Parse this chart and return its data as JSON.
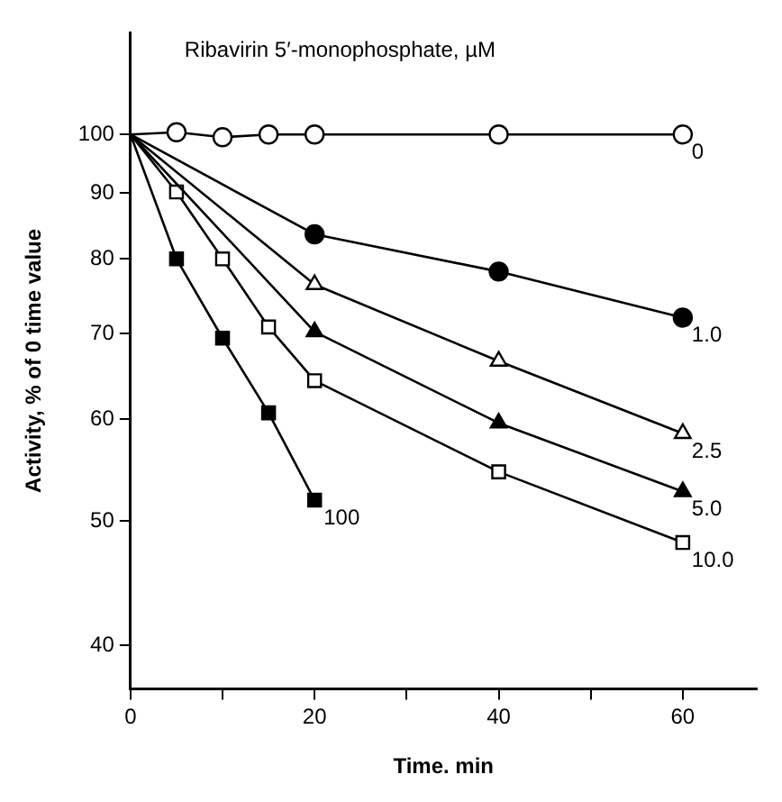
{
  "chart_data": {
    "type": "line",
    "legend_title": "Ribavirin 5′-monophosphate, µM",
    "xlabel": "Time. min",
    "ylabel": "Activity, % of 0 time value",
    "xlim": [
      0,
      68
    ],
    "xticks": [
      0,
      {
        "value": 10,
        "label": null
      },
      20,
      {
        "value": 30,
        "label": null
      },
      40,
      {
        "value": 50,
        "label": null
      },
      60
    ],
    "ylim": [
      37,
      120
    ],
    "yticks": [
      40,
      50,
      60,
      70,
      80,
      90,
      100
    ],
    "log": "y",
    "grid": false,
    "legend": false,
    "color": "#000000",
    "series": [
      {
        "name": "0",
        "marker": "circle",
        "x": [
          0,
          5,
          10,
          15,
          20,
          40,
          60
        ],
        "values": [
          100,
          100.4,
          99.5,
          100,
          100,
          100,
          100
        ]
      },
      {
        "name": "1.0",
        "marker": "circle",
        "x": [
          0,
          20,
          40,
          60
        ],
        "values": [
          100,
          83.6,
          78.2,
          72
        ]
      },
      {
        "name": "2.5",
        "marker": "triangle",
        "x": [
          0,
          20,
          40,
          60
        ],
        "values": [
          100,
          76.4,
          66.6,
          58.5
        ]
      },
      {
        "name": "5.0",
        "marker": "triangle",
        "x": [
          0,
          20,
          40,
          60
        ],
        "values": [
          100,
          70.2,
          59.6,
          52.7
        ]
      },
      {
        "name": "10.0",
        "marker": "square",
        "x": [
          0,
          5,
          10,
          15,
          20,
          40,
          60
        ],
        "values": [
          100,
          90.2,
          80,
          70.8,
          64.3,
          54.6,
          48.1
        ]
      },
      {
        "name": "100",
        "marker": "square",
        "x": [
          0,
          5,
          10,
          15,
          20
        ],
        "values": [
          100,
          80,
          69.4,
          60.7,
          51.9
        ]
      }
    ]
  }
}
